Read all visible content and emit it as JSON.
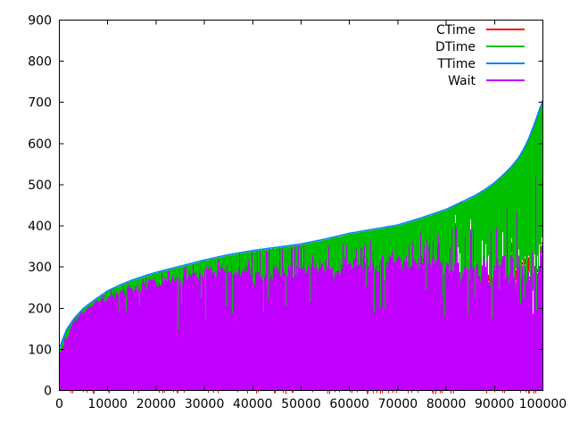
{
  "window": {
    "background": "#ffffff"
  },
  "chart_data": {
    "type": "area",
    "title": "",
    "xlabel": "",
    "ylabel": "",
    "x_range": [
      0,
      100000
    ],
    "y_range": [
      0,
      900
    ],
    "x_ticks": [
      0,
      10000,
      20000,
      30000,
      40000,
      50000,
      60000,
      70000,
      80000,
      90000,
      100000
    ],
    "y_ticks": [
      0,
      100,
      200,
      300,
      400,
      500,
      600,
      700,
      800,
      900
    ],
    "grid": false,
    "legend_position": "top-right-inside",
    "frame_color": "#000000",
    "series": [
      {
        "name": "CTime",
        "color": "#ff0000"
      },
      {
        "name": "DTime",
        "color": "#00c000"
      },
      {
        "name": "TTime",
        "color": "#0080ff"
      },
      {
        "name": "Wait",
        "color": "#c000ff"
      }
    ],
    "ttime_envelope_points": [
      [
        0,
        98
      ],
      [
        500,
        118
      ],
      [
        1500,
        148
      ],
      [
        3000,
        174
      ],
      [
        5000,
        200
      ],
      [
        7500,
        222
      ],
      [
        10000,
        242
      ],
      [
        12500,
        256
      ],
      [
        15000,
        268
      ],
      [
        17500,
        278
      ],
      [
        20000,
        287
      ],
      [
        25000,
        302
      ],
      [
        30000,
        317
      ],
      [
        35000,
        330
      ],
      [
        40000,
        340
      ],
      [
        45000,
        348
      ],
      [
        50000,
        356
      ],
      [
        55000,
        368
      ],
      [
        60000,
        382
      ],
      [
        65000,
        392
      ],
      [
        70000,
        402
      ],
      [
        75000,
        420
      ],
      [
        80000,
        440
      ],
      [
        83000,
        457
      ],
      [
        86000,
        474
      ],
      [
        88000,
        488
      ],
      [
        90000,
        505
      ],
      [
        92000,
        526
      ],
      [
        93500,
        544
      ],
      [
        95000,
        566
      ],
      [
        96000,
        586
      ],
      [
        97000,
        610
      ],
      [
        98000,
        640
      ],
      [
        98800,
        666
      ],
      [
        99400,
        686
      ],
      [
        99800,
        698
      ],
      [
        100000,
        705
      ]
    ],
    "wait_top_mean_spread_points": [
      [
        0,
        90,
        4
      ],
      [
        3000,
        162,
        7
      ],
      [
        5000,
        188,
        9
      ],
      [
        10000,
        226,
        11
      ],
      [
        15000,
        250,
        13
      ],
      [
        20000,
        258,
        18
      ],
      [
        25000,
        272,
        20
      ],
      [
        30000,
        288,
        22
      ],
      [
        35000,
        293,
        24
      ],
      [
        40000,
        287,
        26
      ],
      [
        45000,
        292,
        28
      ],
      [
        50000,
        298,
        30
      ],
      [
        55000,
        303,
        26
      ],
      [
        60000,
        310,
        24
      ],
      [
        65000,
        312,
        24
      ],
      [
        70000,
        312,
        25
      ],
      [
        75000,
        310,
        27
      ],
      [
        80000,
        312,
        30
      ],
      [
        85000,
        306,
        36
      ],
      [
        90000,
        300,
        46
      ],
      [
        95000,
        294,
        60
      ],
      [
        100000,
        300,
        70
      ]
    ],
    "dtime_band": {
      "fills_from": "wait_top",
      "fills_to": "ttime_envelope",
      "white_gaps_after_x": 80000
    },
    "ctime_visible": {
      "axis_tick_probability": 0.15,
      "tail_start_x": 88000,
      "tail_max_value": 360
    },
    "noise_seed": 7
  }
}
